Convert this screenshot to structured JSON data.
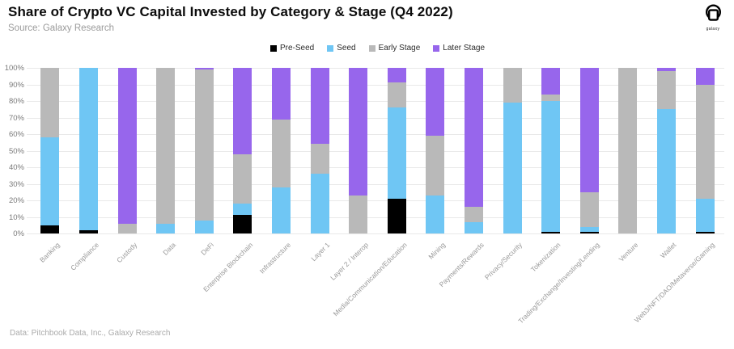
{
  "header": {
    "title": "Share of Crypto VC Capital Invested by Category & Stage (Q4 2022)",
    "source": "Source: Galaxy Research",
    "logo_text": "galaxy"
  },
  "footer": {
    "note": "Data: Pitchbook Data, Inc., Galaxy Research"
  },
  "colors": {
    "pre_seed": "#000000",
    "seed": "#6FC6F4",
    "early_stage": "#B9B9B9",
    "later_stage": "#9766EC",
    "gridline": "#E9E9E9"
  },
  "y_axis": {
    "tick_labels": [
      "0%",
      "10%",
      "20%",
      "30%",
      "40%",
      "50%",
      "60%",
      "70%",
      "80%",
      "90%",
      "100%"
    ]
  },
  "chart_data": {
    "type": "bar",
    "stacked": true,
    "unit": "%",
    "title": "Share of Crypto VC Capital Invested by Category & Stage (Q4 2022)",
    "xlabel": "",
    "ylabel": "",
    "ylim": [
      0,
      100
    ],
    "ytick_step": 10,
    "grid": true,
    "legend_position": "top-center",
    "categories": [
      "Banking",
      "Compliance",
      "Custody",
      "Data",
      "DeFi",
      "Enterprise Blockchain",
      "Infrastructure",
      "Layer 1",
      "Layer 2 / Interop",
      "Media/Communication/Education",
      "Mining",
      "Payments/Rewards",
      "Privacy/Security",
      "Tokenization",
      "Trading/Exchange/Investing/Lending",
      "Venture",
      "Wallet",
      "Web3/NFT/DAO/Metaverse/Gaming"
    ],
    "series": [
      {
        "name": "Pre-Seed",
        "color": "#000000",
        "values": [
          5,
          2,
          0,
          0,
          0,
          11,
          0,
          0,
          0,
          21,
          0,
          0,
          0,
          1,
          1,
          0,
          0,
          1
        ]
      },
      {
        "name": "Seed",
        "color": "#6FC6F4",
        "values": [
          53,
          98,
          0,
          6,
          8,
          7,
          28,
          36,
          0,
          55,
          23,
          7,
          79,
          79,
          3,
          0,
          75,
          20
        ]
      },
      {
        "name": "Early Stage",
        "color": "#B9B9B9",
        "values": [
          42,
          0,
          6,
          94,
          91,
          30,
          41,
          18,
          23,
          15,
          36,
          9,
          21,
          4,
          21,
          100,
          23,
          69
        ]
      },
      {
        "name": "Later Stage",
        "color": "#9766EC",
        "values": [
          0,
          0,
          94,
          0,
          1,
          52,
          31,
          46,
          77,
          9,
          41,
          84,
          0,
          16,
          75,
          0,
          2,
          10
        ]
      }
    ]
  }
}
